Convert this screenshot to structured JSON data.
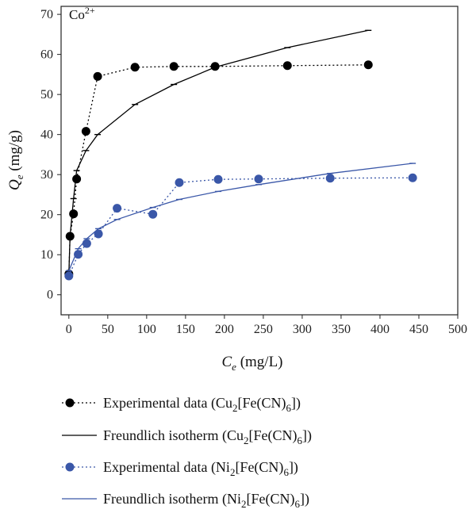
{
  "chart_data": {
    "type": "line",
    "annotation": "Co",
    "annotation_sup": "2+",
    "xlabel": {
      "italic": "C",
      "sub": "e",
      "rest": " (mg/L)"
    },
    "ylabel": {
      "italic": "Q",
      "sub": "e",
      "rest": " (mg/g)"
    },
    "xlim": [
      -10,
      500
    ],
    "ylim": [
      -5,
      72
    ],
    "xticks": [
      0,
      50,
      100,
      150,
      200,
      250,
      300,
      350,
      400,
      450,
      500
    ],
    "yticks": [
      0,
      10,
      20,
      30,
      40,
      50,
      60,
      70
    ],
    "grid": false,
    "legend_position": "bottom",
    "series": [
      {
        "kind": "experimental",
        "color": "#000000",
        "legend": {
          "text": "Experimental data (Cu",
          "sub1": "2",
          "mid": "[Fe(CN)",
          "sub2": "6",
          "end": "])"
        },
        "points": [
          [
            0,
            5.2
          ],
          [
            1.5,
            14.6
          ],
          [
            6,
            20.2
          ],
          [
            10,
            28.9
          ],
          [
            22,
            40.8
          ],
          [
            37,
            54.5
          ],
          [
            85,
            56.8
          ],
          [
            135,
            57.0
          ],
          [
            188,
            57.0
          ],
          [
            281,
            57.2
          ],
          [
            385,
            57.4
          ]
        ]
      },
      {
        "kind": "model",
        "color": "#000000",
        "legend": {
          "text": "Freundlich isotherm (Cu",
          "sub1": "2",
          "mid": "[Fe(CN)",
          "sub2": "6",
          "end": "])"
        },
        "points": [
          [
            0,
            5.2
          ],
          [
            1.5,
            14.6
          ],
          [
            6,
            24.0
          ],
          [
            10,
            31.0
          ],
          [
            22,
            36.0
          ],
          [
            37,
            40.0
          ],
          [
            85,
            47.5
          ],
          [
            135,
            52.5
          ],
          [
            188,
            56.8
          ],
          [
            281,
            61.7
          ],
          [
            385,
            66.0
          ]
        ]
      },
      {
        "kind": "experimental",
        "color": "#3a57a8",
        "legend": {
          "text": "Experimental data (Ni",
          "sub1": "2",
          "mid": "[Fe(CN)",
          "sub2": "6",
          "end": "])"
        },
        "points": [
          [
            0,
            4.7
          ],
          [
            12,
            10.1
          ],
          [
            23,
            12.8
          ],
          [
            38,
            15.2
          ],
          [
            62,
            21.6
          ],
          [
            108,
            20.1
          ],
          [
            142,
            28.0
          ],
          [
            192,
            28.8
          ],
          [
            244,
            28.9
          ],
          [
            336,
            29.1
          ],
          [
            442,
            29.2
          ]
        ]
      },
      {
        "kind": "model",
        "color": "#3a57a8",
        "legend": {
          "text": "Freundlich isotherm (Ni",
          "sub1": "2",
          "mid": "[Fe(CN)",
          "sub2": "6",
          "end": "])"
        },
        "points": [
          [
            0,
            6.0
          ],
          [
            12,
            11.5
          ],
          [
            23,
            14.0
          ],
          [
            38,
            16.5
          ],
          [
            62,
            18.8
          ],
          [
            108,
            21.8
          ],
          [
            142,
            23.8
          ],
          [
            192,
            25.8
          ],
          [
            244,
            27.5
          ],
          [
            336,
            30.3
          ],
          [
            442,
            32.8
          ]
        ]
      }
    ]
  }
}
